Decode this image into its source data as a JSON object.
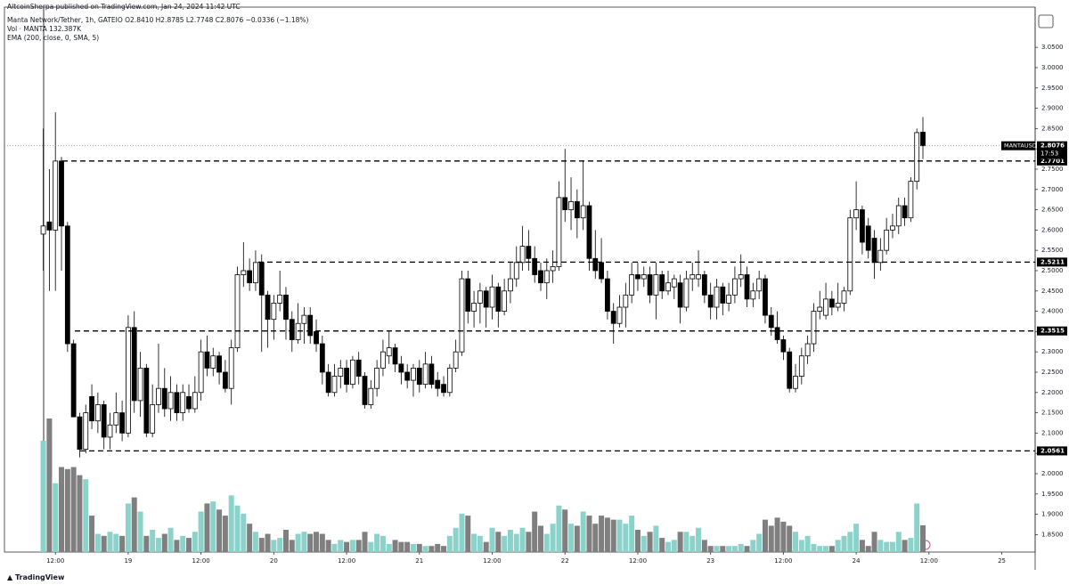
{
  "header": {
    "publisher": "AltcoinSherpa published on TradingView.com, Jan 24, 2024 11:42 UTC",
    "symbol_line": "Manta Network/Tether, 1h, GATEIO  O2.8410  H2.8785  L2.7748  C2.8076  −0.0336 (−1.18%)",
    "volume_line": "Vol · MANTA  132.387K",
    "ema_line": "EMA (200, close, 0, SMA, 5)"
  },
  "footer": {
    "brand": "TradingView"
  },
  "chart_data": {
    "type": "candlestick",
    "open": [
      2.59,
      2.62,
      2.6,
      2.77,
      2.61,
      2.32,
      2.14,
      2.06,
      2.19,
      2.13,
      2.17,
      2.09,
      2.12,
      2.15,
      2.1,
      2.36,
      2.18,
      2.26,
      2.1,
      2.17,
      2.21,
      2.16,
      2.2,
      2.15,
      2.19,
      2.16,
      2.2,
      2.3,
      2.26,
      2.29,
      2.25,
      2.21,
      2.31,
      2.49,
      2.5,
      2.47,
      2.52,
      2.44,
      2.38,
      2.42,
      2.44,
      2.38,
      2.33,
      2.37,
      2.39,
      2.35,
      2.32,
      2.25,
      2.2,
      2.24,
      2.26,
      2.22,
      2.28,
      2.24,
      2.17,
      2.21,
      2.26,
      2.29,
      2.31,
      2.27,
      2.25,
      2.23,
      2.26,
      2.22,
      2.27,
      2.23,
      2.22,
      2.2,
      2.26,
      2.3,
      2.48,
      2.4,
      2.42,
      2.45,
      2.41,
      2.46,
      2.4,
      2.45,
      2.48,
      2.52,
      2.56,
      2.53,
      2.5,
      2.47,
      2.5,
      2.51,
      2.68,
      2.65,
      2.67,
      2.63,
      2.66,
      2.53,
      2.52,
      2.48,
      2.4,
      2.37,
      2.41,
      2.44,
      2.49,
      2.48,
      2.49,
      2.44,
      2.49,
      2.45,
      2.46,
      2.47,
      2.41,
      2.48,
      2.48,
      2.49,
      2.44,
      2.41,
      2.46,
      2.42,
      2.44,
      2.48,
      2.49,
      2.43,
      2.45,
      2.48,
      2.39,
      2.36,
      2.33,
      2.3,
      2.21,
      2.24,
      2.29,
      2.32,
      2.4,
      2.39,
      2.43,
      2.41,
      2.42,
      2.45,
      2.63,
      2.65,
      2.61,
      2.58,
      2.52,
      2.55,
      2.6,
      2.61,
      2.66,
      2.63,
      2.72,
      2.841
    ],
    "high": [
      2.85,
      2.75,
      2.89,
      2.78,
      2.62,
      2.33,
      2.15,
      2.17,
      2.22,
      2.2,
      2.18,
      2.15,
      2.2,
      2.18,
      2.39,
      2.4,
      2.3,
      2.27,
      2.22,
      2.32,
      2.26,
      2.24,
      2.22,
      2.22,
      2.22,
      2.24,
      2.33,
      2.34,
      2.31,
      2.3,
      2.28,
      2.33,
      2.51,
      2.57,
      2.53,
      2.55,
      2.54,
      2.45,
      2.44,
      2.5,
      2.46,
      2.4,
      2.42,
      2.41,
      2.41,
      2.38,
      2.34,
      2.27,
      2.27,
      2.28,
      2.28,
      2.29,
      2.3,
      2.25,
      2.23,
      2.28,
      2.33,
      2.35,
      2.32,
      2.29,
      2.27,
      2.27,
      2.28,
      2.3,
      2.29,
      2.25,
      2.24,
      2.27,
      2.33,
      2.5,
      2.5,
      2.45,
      2.47,
      2.46,
      2.49,
      2.47,
      2.48,
      2.52,
      2.56,
      2.61,
      2.6,
      2.56,
      2.52,
      2.53,
      2.55,
      2.72,
      2.8,
      2.73,
      2.7,
      2.77,
      2.67,
      2.6,
      2.58,
      2.5,
      2.42,
      2.44,
      2.47,
      2.52,
      2.52,
      2.51,
      2.51,
      2.52,
      2.5,
      2.5,
      2.49,
      2.49,
      2.5,
      2.52,
      2.55,
      2.5,
      2.47,
      2.48,
      2.47,
      2.47,
      2.51,
      2.54,
      2.51,
      2.47,
      2.5,
      2.49,
      2.41,
      2.4,
      2.34,
      2.31,
      2.27,
      2.31,
      2.34,
      2.42,
      2.45,
      2.47,
      2.45,
      2.47,
      2.46,
      2.65,
      2.72,
      2.66,
      2.63,
      2.6,
      2.58,
      2.63,
      2.64,
      2.68,
      2.68,
      2.73,
      2.85,
      2.8785
    ],
    "low": [
      2.5,
      2.45,
      2.45,
      2.5,
      2.3,
      2.14,
      2.04,
      2.05,
      2.11,
      2.1,
      2.06,
      2.06,
      2.1,
      2.08,
      2.09,
      2.15,
      2.14,
      2.09,
      2.09,
      2.15,
      2.14,
      2.13,
      2.13,
      2.13,
      2.15,
      2.15,
      2.18,
      2.24,
      2.24,
      2.22,
      2.2,
      2.17,
      2.3,
      2.46,
      2.45,
      2.45,
      2.3,
      2.31,
      2.33,
      2.4,
      2.33,
      2.3,
      2.32,
      2.32,
      2.32,
      2.3,
      2.22,
      2.19,
      2.19,
      2.21,
      2.2,
      2.21,
      2.22,
      2.16,
      2.16,
      2.19,
      2.24,
      2.27,
      2.25,
      2.22,
      2.21,
      2.19,
      2.2,
      2.21,
      2.21,
      2.19,
      2.19,
      2.19,
      2.25,
      2.29,
      2.37,
      2.36,
      2.37,
      2.36,
      2.38,
      2.36,
      2.39,
      2.42,
      2.46,
      2.5,
      2.5,
      2.47,
      2.45,
      2.43,
      2.47,
      2.5,
      2.62,
      2.6,
      2.58,
      2.6,
      2.5,
      2.48,
      2.47,
      2.38,
      2.32,
      2.36,
      2.36,
      2.42,
      2.45,
      2.46,
      2.42,
      2.38,
      2.43,
      2.44,
      2.43,
      2.37,
      2.4,
      2.45,
      2.46,
      2.42,
      2.38,
      2.38,
      2.39,
      2.4,
      2.42,
      2.46,
      2.41,
      2.41,
      2.43,
      2.37,
      2.34,
      2.32,
      2.28,
      2.2,
      2.2,
      2.22,
      2.27,
      2.3,
      2.38,
      2.38,
      2.39,
      2.4,
      2.4,
      2.44,
      2.6,
      2.54,
      2.53,
      2.48,
      2.5,
      2.54,
      2.58,
      2.59,
      2.61,
      2.62,
      2.7,
      2.7748
    ],
    "close": [
      2.61,
      2.6,
      2.77,
      2.61,
      2.32,
      2.14,
      2.06,
      2.15,
      2.13,
      2.17,
      2.09,
      2.12,
      2.15,
      2.1,
      2.36,
      2.18,
      2.26,
      2.1,
      2.17,
      2.21,
      2.16,
      2.2,
      2.15,
      2.2,
      2.16,
      2.2,
      2.3,
      2.26,
      2.29,
      2.25,
      2.21,
      2.31,
      2.49,
      2.5,
      2.47,
      2.52,
      2.44,
      2.38,
      2.42,
      2.44,
      2.38,
      2.33,
      2.37,
      2.39,
      2.34,
      2.32,
      2.25,
      2.2,
      2.24,
      2.26,
      2.22,
      2.28,
      2.24,
      2.17,
      2.21,
      2.26,
      2.3,
      2.31,
      2.27,
      2.25,
      2.23,
      2.26,
      2.22,
      2.27,
      2.22,
      2.21,
      2.2,
      2.26,
      2.3,
      2.48,
      2.4,
      2.42,
      2.45,
      2.41,
      2.46,
      2.4,
      2.45,
      2.48,
      2.52,
      2.56,
      2.53,
      2.49,
      2.47,
      2.5,
      2.51,
      2.68,
      2.65,
      2.67,
      2.63,
      2.66,
      2.53,
      2.5,
      2.48,
      2.4,
      2.37,
      2.41,
      2.44,
      2.49,
      2.48,
      2.49,
      2.44,
      2.49,
      2.45,
      2.47,
      2.48,
      2.41,
      2.48,
      2.49,
      2.49,
      2.44,
      2.41,
      2.46,
      2.42,
      2.44,
      2.48,
      2.49,
      2.43,
      2.45,
      2.48,
      2.39,
      2.36,
      2.33,
      2.3,
      2.21,
      2.24,
      2.29,
      2.32,
      2.4,
      2.41,
      2.43,
      2.41,
      2.42,
      2.45,
      2.63,
      2.65,
      2.57,
      2.55,
      2.52,
      2.55,
      2.6,
      2.61,
      2.66,
      2.63,
      2.72,
      2.84,
      2.8076
    ],
    "volume": [
      550,
      660,
      340,
      420,
      410,
      420,
      380,
      360,
      180,
      90,
      80,
      100,
      90,
      80,
      240,
      270,
      200,
      80,
      110,
      70,
      90,
      120,
      60,
      80,
      70,
      100,
      200,
      240,
      250,
      210,
      180,
      280,
      230,
      190,
      140,
      100,
      70,
      90,
      60,
      70,
      110,
      60,
      90,
      100,
      90,
      100,
      90,
      60,
      40,
      60,
      50,
      60,
      60,
      100,
      50,
      90,
      80,
      40,
      60,
      50,
      50,
      40,
      40,
      30,
      30,
      40,
      30,
      80,
      120,
      190,
      180,
      90,
      80,
      50,
      120,
      100,
      80,
      110,
      90,
      120,
      100,
      200,
      130,
      90,
      140,
      230,
      210,
      140,
      130,
      200,
      180,
      140,
      180,
      170,
      160,
      160,
      140,
      180,
      110,
      80,
      100,
      130,
      70,
      50,
      60,
      100,
      100,
      80,
      120,
      60,
      30,
      30,
      30,
      30,
      30,
      40,
      30,
      60,
      90,
      160,
      130,
      170,
      150,
      130,
      100,
      60,
      80,
      40,
      30,
      30,
      30,
      60,
      80,
      100,
      140,
      60,
      30,
      100,
      60,
      50,
      50,
      100,
      60,
      70,
      240,
      132.387
    ],
    "up_color": "#ffffff",
    "down_color": "#000000",
    "volume_up_color": "#8bd3ca",
    "volume_down_color": "#7f7f7f",
    "xlim": [
      -6.4,
      163.5
    ],
    "xticks": [
      {
        "value": 2,
        "label": "12:00"
      },
      {
        "value": 14,
        "label": "19"
      },
      {
        "value": 26,
        "label": "12:00"
      },
      {
        "value": 38,
        "label": "20"
      },
      {
        "value": 50,
        "label": "12:00"
      },
      {
        "value": 62,
        "label": "21"
      },
      {
        "value": 74,
        "label": "12:00"
      },
      {
        "value": 86,
        "label": "22"
      },
      {
        "value": 98,
        "label": "12:00"
      },
      {
        "value": 110,
        "label": "23"
      },
      {
        "value": 122,
        "label": "12:00"
      },
      {
        "value": 134,
        "label": "24"
      },
      {
        "value": 146,
        "label": "12:00"
      },
      {
        "value": 158,
        "label": "25"
      }
    ],
    "ylim": [
      1.807,
      3.149
    ],
    "yticks": [
      {
        "value": 1.85,
        "label": "1.8500"
      },
      {
        "value": 1.9,
        "label": "1.9000"
      },
      {
        "value": 1.95,
        "label": "1.9500"
      },
      {
        "value": 2.0,
        "label": "2.0000"
      },
      {
        "value": 2.05,
        "label": "2.0500"
      },
      {
        "value": 2.1,
        "label": "2.1000"
      },
      {
        "value": 2.15,
        "label": "2.1500"
      },
      {
        "value": 2.2,
        "label": "2.2000"
      },
      {
        "value": 2.25,
        "label": "2.2500"
      },
      {
        "value": 2.3,
        "label": "2.3000"
      },
      {
        "value": 2.35,
        "label": "2.3500"
      },
      {
        "value": 2.4,
        "label": "2.4000"
      },
      {
        "value": 2.45,
        "label": "2.4500"
      },
      {
        "value": 2.5,
        "label": "2.5000"
      },
      {
        "value": 2.55,
        "label": "2.5500"
      },
      {
        "value": 2.6,
        "label": "2.6000"
      },
      {
        "value": 2.65,
        "label": "2.6500"
      },
      {
        "value": 2.7,
        "label": "2.7000"
      },
      {
        "value": 2.75,
        "label": "2.7500"
      },
      {
        "value": 2.8,
        "label": "2.8000"
      },
      {
        "value": 2.85,
        "label": "2.8500"
      },
      {
        "value": 2.9,
        "label": "2.9000"
      },
      {
        "value": 2.95,
        "label": "2.9500"
      },
      {
        "value": 3.0,
        "label": "3.0000"
      },
      {
        "value": 3.05,
        "label": "3.0500"
      }
    ],
    "levels": [
      2.7701,
      2.5211,
      2.3515,
      2.0561
    ],
    "symbol_label": "MANTAUSDT",
    "last_price": 2.8076,
    "countdown": "17:53"
  }
}
